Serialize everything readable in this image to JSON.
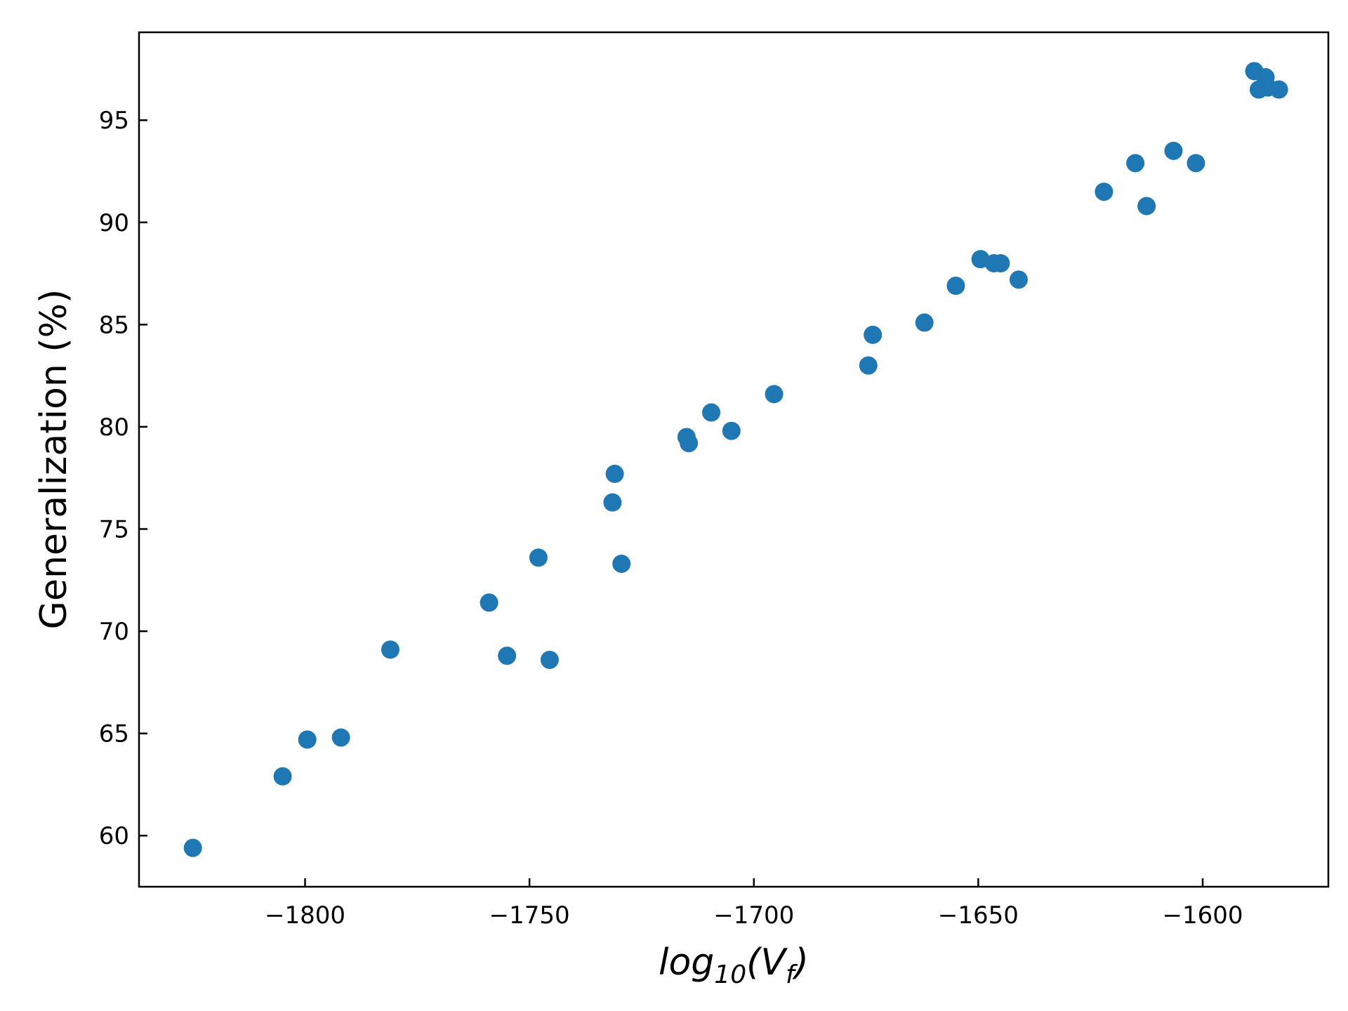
{
  "chart_data": {
    "type": "scatter",
    "title": "",
    "xlabel": {
      "base": "log",
      "sub": "10",
      "open": "(",
      "var": "V",
      "varsub": "f",
      "close": ")"
    },
    "ylabel": "Generalization (%)",
    "xlim": [
      -1837,
      -1572
    ],
    "ylim": [
      57.5,
      99.3
    ],
    "xticks": [
      -1800,
      -1750,
      -1700,
      -1650,
      -1600
    ],
    "xtick_labels": [
      "−1800",
      "−1750",
      "−1700",
      "−1650",
      "−1600"
    ],
    "yticks": [
      60,
      65,
      70,
      75,
      80,
      85,
      90,
      95
    ],
    "ytick_labels": [
      "60",
      "65",
      "70",
      "75",
      "80",
      "85",
      "90",
      "95"
    ],
    "grid": false,
    "marker_color": "#1f77b4",
    "points": [
      {
        "x": -1825,
        "y": 59.4
      },
      {
        "x": -1805,
        "y": 62.9
      },
      {
        "x": -1799.5,
        "y": 64.7
      },
      {
        "x": -1792,
        "y": 64.8
      },
      {
        "x": -1781,
        "y": 69.1
      },
      {
        "x": -1759,
        "y": 71.4
      },
      {
        "x": -1755,
        "y": 68.8
      },
      {
        "x": -1748,
        "y": 73.6
      },
      {
        "x": -1745.5,
        "y": 68.6
      },
      {
        "x": -1731.5,
        "y": 76.3
      },
      {
        "x": -1731,
        "y": 77.7
      },
      {
        "x": -1729.5,
        "y": 73.3
      },
      {
        "x": -1715,
        "y": 79.5
      },
      {
        "x": -1714.5,
        "y": 79.2
      },
      {
        "x": -1709.5,
        "y": 80.7
      },
      {
        "x": -1705,
        "y": 79.8
      },
      {
        "x": -1695.5,
        "y": 81.6
      },
      {
        "x": -1674.5,
        "y": 83.0
      },
      {
        "x": -1673.5,
        "y": 84.5
      },
      {
        "x": -1662,
        "y": 85.1
      },
      {
        "x": -1655,
        "y": 86.9
      },
      {
        "x": -1649.5,
        "y": 88.2
      },
      {
        "x": -1646.5,
        "y": 88.0
      },
      {
        "x": -1645,
        "y": 88.0
      },
      {
        "x": -1641,
        "y": 87.2
      },
      {
        "x": -1622,
        "y": 91.5
      },
      {
        "x": -1615,
        "y": 92.9
      },
      {
        "x": -1612.5,
        "y": 90.8
      },
      {
        "x": -1606.5,
        "y": 93.5
      },
      {
        "x": -1601.5,
        "y": 92.9
      },
      {
        "x": -1588.5,
        "y": 97.4
      },
      {
        "x": -1587.5,
        "y": 96.5
      },
      {
        "x": -1586,
        "y": 97.1
      },
      {
        "x": -1585.5,
        "y": 96.6
      },
      {
        "x": -1583,
        "y": 96.5
      }
    ]
  }
}
